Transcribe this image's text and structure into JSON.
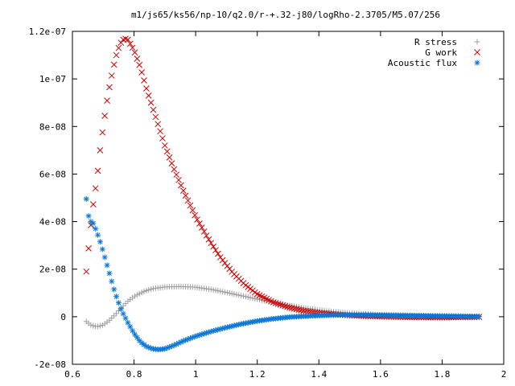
{
  "chart_data": {
    "type": "scatter",
    "title": "m1/js65/ks56/np-10/q2.0/r-+.32-j80/logRho-2.3705/M5.07/256",
    "xlabel": "",
    "ylabel": "",
    "xlim": [
      0.6,
      2.0
    ],
    "ylim": [
      -2e-08,
      1.2e-07
    ],
    "xticks": [
      0.6,
      0.8,
      1.0,
      1.2,
      1.4,
      1.6,
      1.8,
      2.0
    ],
    "xtick_labels": [
      "0.6",
      "0.8",
      "1",
      "1.2",
      "1.4",
      "1.6",
      "1.8",
      "2"
    ],
    "yticks": [
      -2e-08,
      0,
      2e-08,
      4e-08,
      6e-08,
      8e-08,
      1e-07,
      1.2e-07
    ],
    "ytick_labels": [
      "-2e-08",
      "0",
      "2e-08",
      "4e-08",
      "6e-08",
      "8e-08",
      "1e-07",
      "1.2e-07"
    ],
    "grid": false,
    "legend_position": "top-right",
    "series": [
      {
        "name": "R stress",
        "marker": "plus",
        "color": "#a0a0a0",
        "x": [
          0.645,
          0.66,
          0.68,
          0.7,
          0.72,
          0.74,
          0.76,
          0.78,
          0.8,
          0.83,
          0.86,
          0.9,
          0.95,
          1.0,
          1.05,
          1.1,
          1.15,
          1.2,
          1.25,
          1.3,
          1.35,
          1.4,
          1.45,
          1.5,
          1.6,
          1.7,
          1.8,
          1.92
        ],
        "y": [
          -2e-09,
          -3.5e-09,
          -4.2e-09,
          -3.5e-09,
          -1.5e-09,
          1e-09,
          4e-09,
          6.5e-09,
          8.5e-09,
          1.05e-08,
          1.18e-08,
          1.25e-08,
          1.27e-08,
          1.24e-08,
          1.15e-08,
          1.02e-08,
          8.8e-09,
          7.4e-09,
          6e-09,
          4.8e-09,
          3.7e-09,
          2.8e-09,
          2.1e-09,
          1.5e-09,
          8e-10,
          4e-10,
          2e-10,
          1e-10
        ]
      },
      {
        "name": "G work",
        "marker": "cross",
        "color": "#cc0000",
        "x": [
          0.645,
          0.655,
          0.665,
          0.68,
          0.69,
          0.7,
          0.71,
          0.72,
          0.73,
          0.74,
          0.75,
          0.76,
          0.77,
          0.78,
          0.8,
          0.82,
          0.84,
          0.86,
          0.88,
          0.9,
          0.93,
          0.96,
          1.0,
          1.04,
          1.08,
          1.12,
          1.16,
          1.2,
          1.25,
          1.3,
          1.35,
          1.4,
          1.45,
          1.5,
          1.55,
          1.6,
          1.7,
          1.8,
          1.92
        ],
        "y": [
          1.9e-08,
          3.2e-08,
          4.5e-08,
          5.85e-08,
          7e-08,
          8e-08,
          8.9e-08,
          9.65e-08,
          1.03e-07,
          1.09e-07,
          1.13e-07,
          1.16e-07,
          1.17e-07,
          1.165e-07,
          1.12e-07,
          1.05e-07,
          9.6e-08,
          8.8e-08,
          8e-08,
          7.2e-08,
          6.2e-08,
          5.3e-08,
          4.2e-08,
          3.3e-08,
          2.5e-08,
          1.85e-08,
          1.35e-08,
          9.5e-09,
          6.2e-09,
          4e-09,
          2.5e-09,
          1.6e-09,
          1e-09,
          6e-10,
          3e-10,
          1e-10,
          -2e-10,
          -3e-10,
          -1e-10
        ]
      },
      {
        "name": "Acoustic flux",
        "marker": "star",
        "color": "#0a77d8",
        "x": [
          0.645,
          0.655,
          0.665,
          0.675,
          0.685,
          0.695,
          0.705,
          0.715,
          0.725,
          0.735,
          0.745,
          0.76,
          0.78,
          0.8,
          0.82,
          0.84,
          0.86,
          0.88,
          0.9,
          0.93,
          0.96,
          1.0,
          1.05,
          1.1,
          1.15,
          1.2,
          1.25,
          1.3,
          1.35,
          1.4,
          1.45,
          1.5,
          1.55,
          1.6,
          1.7,
          1.8,
          1.92
        ],
        "y": [
          4.95e-08,
          4e-08,
          4e-08,
          3.7e-08,
          3.35e-08,
          2.95e-08,
          2.5e-08,
          2.05e-08,
          1.6e-08,
          1.15e-08,
          7.5e-09,
          2.5e-09,
          -2.5e-09,
          -7e-09,
          -1.05e-08,
          -1.25e-08,
          -1.35e-08,
          -1.38e-08,
          -1.35e-08,
          -1.2e-08,
          -1.02e-08,
          -8.2e-09,
          -6.2e-09,
          -4.5e-09,
          -3e-09,
          -1.8e-09,
          -9e-10,
          -2e-10,
          2e-10,
          5e-10,
          7e-10,
          8e-10,
          8e-10,
          7e-10,
          5e-10,
          3e-10,
          1e-10
        ]
      }
    ]
  }
}
